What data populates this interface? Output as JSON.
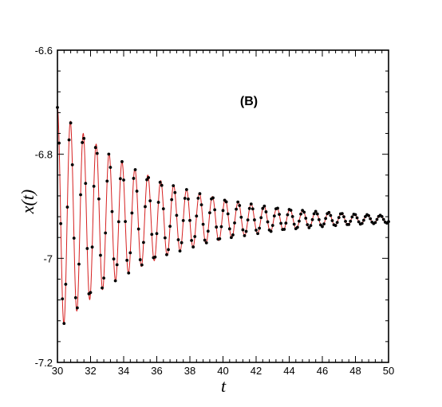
{
  "chart_data": {
    "type": "line",
    "panel_label": "(B)",
    "xlabel": "t",
    "ylabel": "x(t)",
    "xlim": [
      30,
      50
    ],
    "ylim": [
      -7.2,
      -6.6
    ],
    "xticks": [
      30,
      32,
      34,
      36,
      38,
      40,
      42,
      44,
      46,
      48,
      50
    ],
    "yticks": [
      -7.2,
      -7,
      -6.8,
      -6.6
    ],
    "xtick_labels": [
      "30",
      "32",
      "34",
      "36",
      "38",
      "40",
      "42",
      "44",
      "46",
      "48",
      "50"
    ],
    "ytick_labels": [
      "-7.2",
      "-7",
      "-6.8",
      "-6.6"
    ],
    "grid": false,
    "colors": {
      "line": "#d62020",
      "markers": "#000000",
      "axes": "#000000"
    },
    "series": [
      {
        "style": "line",
        "model": "damped_oscillation",
        "center": -6.925,
        "amplitude_at_start": 0.215,
        "decay_rate": 0.17,
        "period": 0.78,
        "x_range": [
          30,
          50
        ]
      },
      {
        "style": "markers",
        "model": "damped_oscillation",
        "center": -6.925,
        "amplitude_at_start": 0.215,
        "decay_rate": 0.17,
        "period": 0.78,
        "x_range": [
          30,
          50
        ],
        "sample_spacing": 0.1
      }
    ]
  }
}
